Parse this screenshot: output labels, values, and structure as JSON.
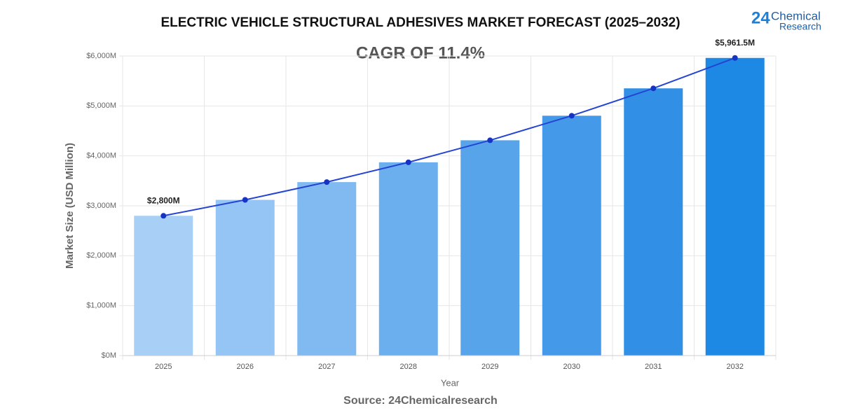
{
  "chart_data": {
    "type": "bar",
    "title": "ELECTRIC VEHICLE STRUCTURAL ADHESIVES MARKET FORECAST (2025–2032)",
    "subtitle": "CAGR OF 11.4%",
    "x_label": "Year",
    "y_label": "Market Size (USD Million)",
    "source": "Source: 24Chemicalresearch",
    "categories": [
      "2025",
      "2026",
      "2027",
      "2028",
      "2029",
      "2030",
      "2031",
      "2032"
    ],
    "values": [
      2800,
      3119,
      3475,
      3871,
      4312,
      4804,
      5352,
      5961.5
    ],
    "value_labels": [
      "$2,800M",
      null,
      null,
      null,
      null,
      null,
      null,
      "$5,961.5M"
    ],
    "colors": [
      "#a8d0f6",
      "#94c5f4",
      "#80baf1",
      "#6cafee",
      "#58a4eb",
      "#4499e8",
      "#3190e6",
      "#1e88e5"
    ],
    "line_color": "#2444d4",
    "marker_color": "#1533c4",
    "ylim": [
      0,
      6000
    ],
    "yticks": [
      {
        "value": 0,
        "label": "$0M"
      },
      {
        "value": 1000,
        "label": "$1,000M"
      },
      {
        "value": 2000,
        "label": "$2,000M"
      },
      {
        "value": 3000,
        "label": "$3,000M"
      },
      {
        "value": 4000,
        "label": "$4,000M"
      },
      {
        "value": 5000,
        "label": "$5,000M"
      },
      {
        "value": 6000,
        "label": "$6,000M"
      }
    ],
    "grid": true
  },
  "logo": {
    "number": "24",
    "line1": "Chemical",
    "line2": "Research"
  }
}
